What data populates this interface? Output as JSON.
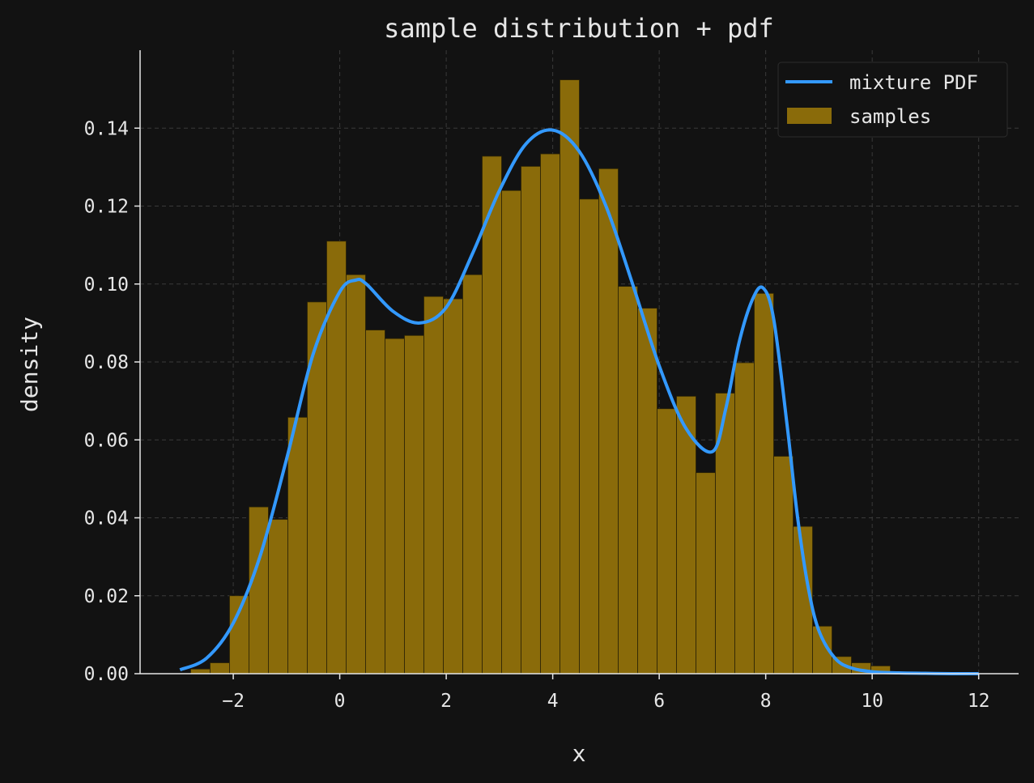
{
  "chart_data": {
    "type": "bar",
    "title": "sample distribution + pdf",
    "xlabel": "x",
    "ylabel": "density",
    "xlim": [
      -3.75,
      12.75
    ],
    "ylim": [
      0,
      0.16
    ],
    "xticks": [
      -2,
      0,
      2,
      4,
      6,
      8,
      10,
      12
    ],
    "xtick_labels": [
      "−2",
      "0",
      "2",
      "4",
      "6",
      "8",
      "10",
      "12"
    ],
    "yticks": [
      0,
      0.02,
      0.04,
      0.06,
      0.08,
      0.1,
      0.12,
      0.14
    ],
    "ytick_labels": [
      "0.00",
      "0.02",
      "0.04",
      "0.06",
      "0.08",
      "0.10",
      "0.12",
      "0.14"
    ],
    "grid": true,
    "legend_position": "top-right",
    "colors": {
      "background": "#121212",
      "histogram": "#8a6b0a",
      "histogram_edge": "#2a2206",
      "pdf_line": "#3399ff",
      "axis": "#e6e6e6",
      "grid": "#3a3a3a"
    },
    "series": [
      {
        "name": "samples",
        "type": "histogram",
        "bin_start": -2.8,
        "bin_width": 0.365,
        "values": [
          0.0012,
          0.0028,
          0.02,
          0.0428,
          0.0396,
          0.0658,
          0.0954,
          0.111,
          0.1024,
          0.0882,
          0.086,
          0.0868,
          0.0968,
          0.0962,
          0.1024,
          0.1328,
          0.124,
          0.1302,
          0.1334,
          0.1524,
          0.1218,
          0.1296,
          0.0994,
          0.0938,
          0.068,
          0.0712,
          0.0516,
          0.072,
          0.0798,
          0.0976,
          0.0558,
          0.0378,
          0.0122,
          0.0044,
          0.0028,
          0.002
        ]
      },
      {
        "name": "mixture PDF",
        "type": "line",
        "x": [
          -3.0,
          -2.5,
          -2.0,
          -1.5,
          -1.0,
          -0.5,
          0.0,
          0.3,
          0.5,
          1.0,
          1.5,
          2.0,
          2.5,
          3.0,
          3.5,
          4.0,
          4.5,
          5.0,
          5.5,
          6.0,
          6.5,
          7.0,
          7.25,
          7.5,
          7.75,
          7.95,
          8.15,
          8.4,
          8.6,
          8.8,
          9.0,
          9.3,
          9.6,
          10.0,
          10.5,
          11.0,
          11.5,
          12.0
        ],
        "y": [
          0.001,
          0.004,
          0.013,
          0.03,
          0.055,
          0.082,
          0.098,
          0.101,
          0.1,
          0.093,
          0.09,
          0.094,
          0.108,
          0.124,
          0.136,
          0.1395,
          0.134,
          0.12,
          0.1,
          0.079,
          0.063,
          0.057,
          0.068,
          0.085,
          0.096,
          0.099,
          0.091,
          0.064,
          0.04,
          0.022,
          0.011,
          0.004,
          0.0015,
          0.0005,
          0.0002,
          0.0001,
          0.0,
          0.0
        ]
      }
    ]
  }
}
